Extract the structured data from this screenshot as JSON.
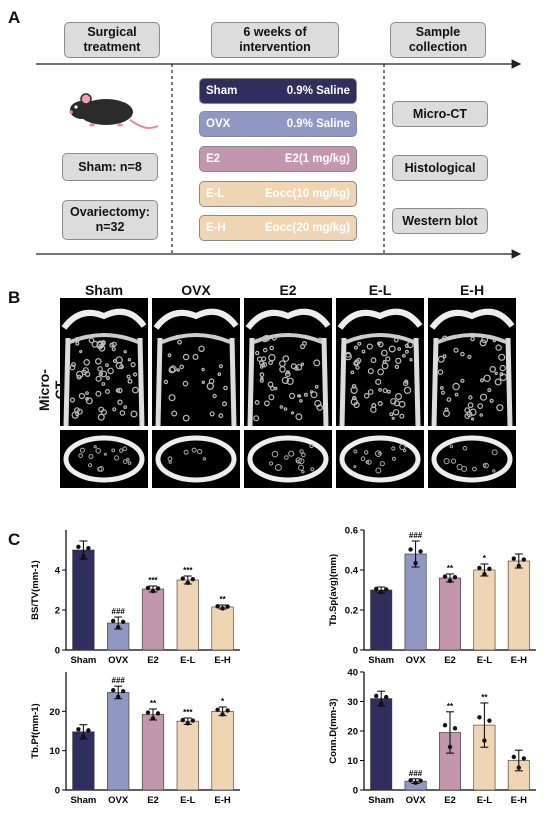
{
  "panel_a": {
    "letter": "A",
    "stages": [
      "Surgical\ntreatment",
      "6 weeks of\nintervention",
      "Sample\ncollection"
    ],
    "sham_label": "Sham: n=8",
    "ovx_label": "Ovariectomy:\nn=32",
    "groups": [
      {
        "name": "Sham",
        "treatment": "0.9% Saline",
        "color": "#2f2e5c"
      },
      {
        "name": "OVX",
        "treatment": "0.9% Saline",
        "color": "#8f97c2"
      },
      {
        "name": "E2",
        "treatment": "E2(1 mg/kg)",
        "color": "#c296ad"
      },
      {
        "name": "E-L",
        "treatment": "Eocc(10 mg/kg)",
        "color": "#efd5b3"
      },
      {
        "name": "E-H",
        "treatment": "Eocc(20 mg/kg)",
        "color": "#efd5b3"
      }
    ],
    "samples": [
      "Micro-CT",
      "Histological",
      "Western blot"
    ]
  },
  "panel_b": {
    "letter": "B",
    "row_label": "Micro-CT",
    "columns": [
      "Sham",
      "OVX",
      "E2",
      "E-L",
      "E-H"
    ]
  },
  "panel_c": {
    "letter": "C"
  },
  "chart_data": [
    {
      "type": "bar",
      "ylabel": "BS/TV(mm-1)",
      "categories": [
        "Sham",
        "OVX",
        "E2",
        "E-L",
        "E-H"
      ],
      "values": [
        5.0,
        1.35,
        3.05,
        3.5,
        2.15
      ],
      "errors": [
        0.45,
        0.3,
        0.15,
        0.2,
        0.1
      ],
      "ylim": [
        0,
        6
      ],
      "yticks": [
        0,
        2,
        4
      ],
      "annotations": [
        "",
        "###",
        "***",
        "***",
        "**"
      ],
      "colors": [
        "#2f2e5c",
        "#8f97c2",
        "#c296ad",
        "#efd5b3",
        "#efd5b3"
      ]
    },
    {
      "type": "bar",
      "ylabel": "Tb.Sp(avg)(mm)",
      "categories": [
        "Sham",
        "OVX",
        "E2",
        "E-L",
        "E-H"
      ],
      "values": [
        0.3,
        0.48,
        0.36,
        0.4,
        0.445
      ],
      "errors": [
        0.015,
        0.065,
        0.02,
        0.03,
        0.035
      ],
      "ylim": [
        0,
        0.6
      ],
      "yticks": [
        0.0,
        0.2,
        0.4,
        0.6
      ],
      "annotations": [
        "",
        "###",
        "**",
        "*",
        ""
      ],
      "colors": [
        "#2f2e5c",
        "#8f97c2",
        "#c296ad",
        "#efd5b3",
        "#efd5b3"
      ]
    },
    {
      "type": "bar",
      "ylabel": "Tb.Pf(mm-1)",
      "categories": [
        "Sham",
        "OVX",
        "E2",
        "E-L",
        "E-H"
      ],
      "values": [
        14.8,
        24.8,
        19.2,
        17.5,
        20.0
      ],
      "errors": [
        1.8,
        1.6,
        1.4,
        0.8,
        1.1
      ],
      "ylim": [
        0,
        30
      ],
      "yticks": [
        0,
        10,
        20
      ],
      "annotations": [
        "",
        "###",
        "**",
        "***",
        "*"
      ],
      "colors": [
        "#2f2e5c",
        "#8f97c2",
        "#c296ad",
        "#efd5b3",
        "#efd5b3"
      ]
    },
    {
      "type": "bar",
      "ylabel": "Conn.D(mm-3)",
      "categories": [
        "Sham",
        "OVX",
        "E2",
        "E-L",
        "E-H"
      ],
      "values": [
        31.0,
        3.0,
        19.5,
        22.0,
        10.0
      ],
      "errors": [
        2.5,
        0.8,
        7.0,
        7.5,
        3.5
      ],
      "ylim": [
        0,
        40
      ],
      "yticks": [
        0,
        10,
        20,
        30,
        40
      ],
      "annotations": [
        "",
        "###",
        "**",
        "**",
        ""
      ],
      "colors": [
        "#2f2e5c",
        "#8f97c2",
        "#c296ad",
        "#efd5b3",
        "#efd5b3"
      ]
    }
  ]
}
